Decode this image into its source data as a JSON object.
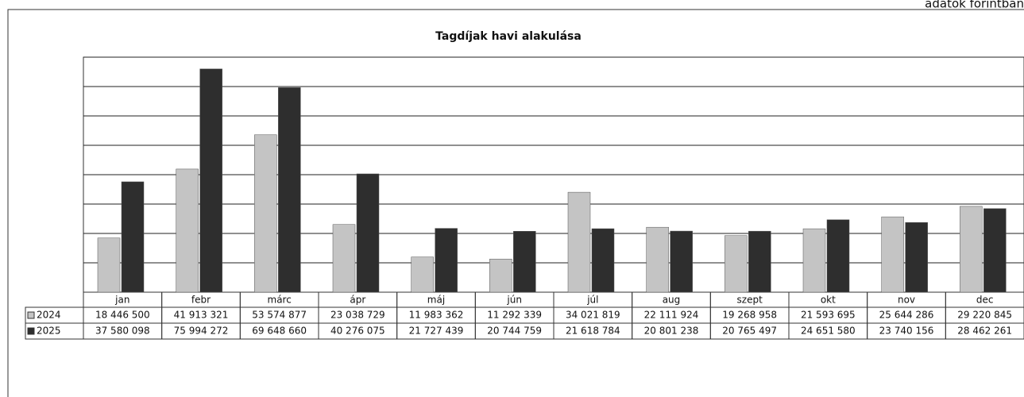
{
  "note_top": "adatok forintban",
  "chart_data": {
    "type": "bar",
    "title": "Tagdíjak havi alakulása",
    "categories": [
      "jan",
      "febr",
      "márc",
      "ápr",
      "máj",
      "jún",
      "júl",
      "aug",
      "szept",
      "okt",
      "nov",
      "dec"
    ],
    "series": [
      {
        "name": "2024",
        "color": "#c4c4c4",
        "values": [
          18446500,
          41913321,
          53574877,
          23038729,
          11983362,
          11292339,
          34021819,
          22111924,
          19268958,
          21593695,
          25644286,
          29220845
        ],
        "value_labels": [
          "18 446 500",
          "41 913 321",
          "53 574 877",
          "23 038 729",
          "11 983 362",
          "11 292 339",
          "34 021 819",
          "22 111 924",
          "19 268 958",
          "21 593 695",
          "25 644 286",
          "29 220 845"
        ]
      },
      {
        "name": "2025",
        "color": "#2e2e2e",
        "values": [
          37580098,
          75994272,
          69648660,
          40276075,
          21727439,
          20744759,
          21618784,
          20801238,
          20765497,
          24651580,
          23740156,
          28462261
        ],
        "value_labels": [
          "37 580 098",
          "75 994 272",
          "69 648 660",
          "40 276 075",
          "21 727 439",
          "20 744 759",
          "21 618 784",
          "20 801 238",
          "20 765 497",
          "24 651 580",
          "23 740 156",
          "28 462 261"
        ]
      }
    ],
    "ylim": [
      0,
      80000000
    ],
    "yticks": [
      0,
      10000000,
      20000000,
      30000000,
      40000000,
      50000000,
      60000000,
      70000000,
      80000000
    ],
    "grid": true
  }
}
